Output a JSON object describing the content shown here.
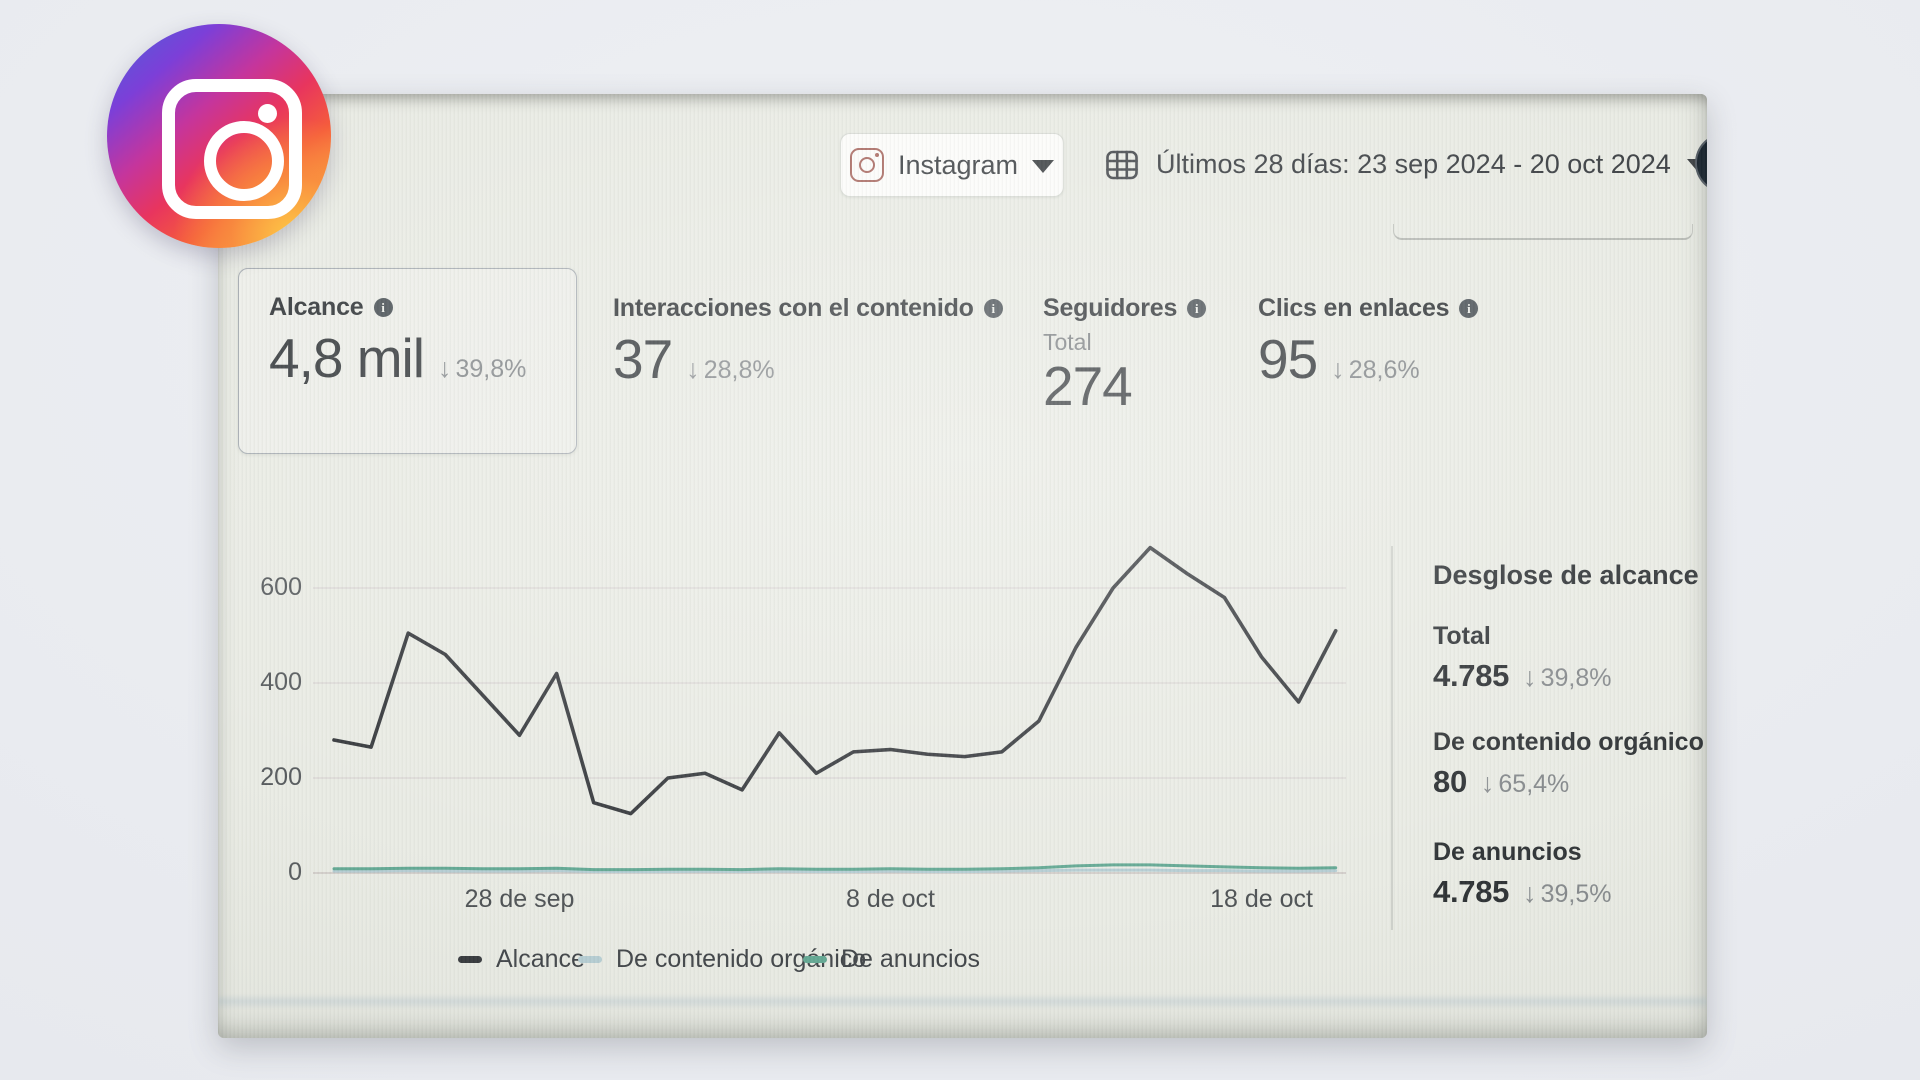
{
  "topbar": {
    "channel": {
      "label": "Instagram"
    },
    "date_range": {
      "label": "Últimos 28 días: 23 sep 2024 - 20 oct 2024"
    }
  },
  "icons": {
    "arrow_down": "↓",
    "caret_down": "▾",
    "info": "i"
  },
  "metrics": {
    "alcance": {
      "title": "Alcance",
      "value": "4,8 mil",
      "delta": "39,8%"
    },
    "interacciones": {
      "title": "Interacciones con el contenido",
      "value": "37",
      "delta": "28,8%"
    },
    "seguidores": {
      "title": "Seguidores",
      "sublabel": "Total",
      "value": "274"
    },
    "clics": {
      "title": "Clics en enlaces",
      "value": "95",
      "delta": "28,6%"
    }
  },
  "breakdown": {
    "title": "Desglose de alcance",
    "items": [
      {
        "label": "Total",
        "value": "4.785",
        "delta": "39,8%"
      },
      {
        "label": "De contenido orgánico",
        "value": "80",
        "delta": "65,4%"
      },
      {
        "label": "De anuncios",
        "value": "4.785",
        "delta": "39,5%"
      }
    ]
  },
  "chart_data": {
    "type": "line",
    "title": "",
    "x_range": "23 sep 2024 - 20 oct 2024",
    "points": 28,
    "xtick_labels": [
      "28 de sep",
      "8 de oct",
      "18 de oct"
    ],
    "xtick_indices": [
      5,
      15,
      25
    ],
    "ytick_values": [
      600,
      400,
      200,
      0
    ],
    "ylim": [
      0,
      700
    ],
    "grid": true,
    "legend_position": "bottom",
    "series": [
      {
        "name": "Alcance",
        "color": "#33363a",
        "values": [
          280,
          265,
          505,
          460,
          375,
          290,
          420,
          148,
          125,
          200,
          210,
          175,
          295,
          210,
          255,
          260,
          250,
          245,
          255,
          320,
          475,
          600,
          685,
          630,
          580,
          455,
          360,
          510
        ]
      },
      {
        "name": "De contenido orgánico",
        "color": "#b5cdd3",
        "values": [
          4,
          4,
          5,
          4,
          4,
          4,
          5,
          3,
          3,
          3,
          4,
          3,
          4,
          3,
          3,
          4,
          3,
          3,
          4,
          5,
          6,
          6,
          6,
          5,
          5,
          4,
          4,
          5
        ]
      },
      {
        "name": "De anuncios",
        "color": "#62a893",
        "values": [
          9,
          9,
          10,
          10,
          9,
          9,
          10,
          7,
          7,
          8,
          8,
          7,
          9,
          8,
          8,
          9,
          8,
          8,
          9,
          11,
          15,
          17,
          17,
          15,
          13,
          11,
          10,
          11
        ]
      }
    ]
  }
}
